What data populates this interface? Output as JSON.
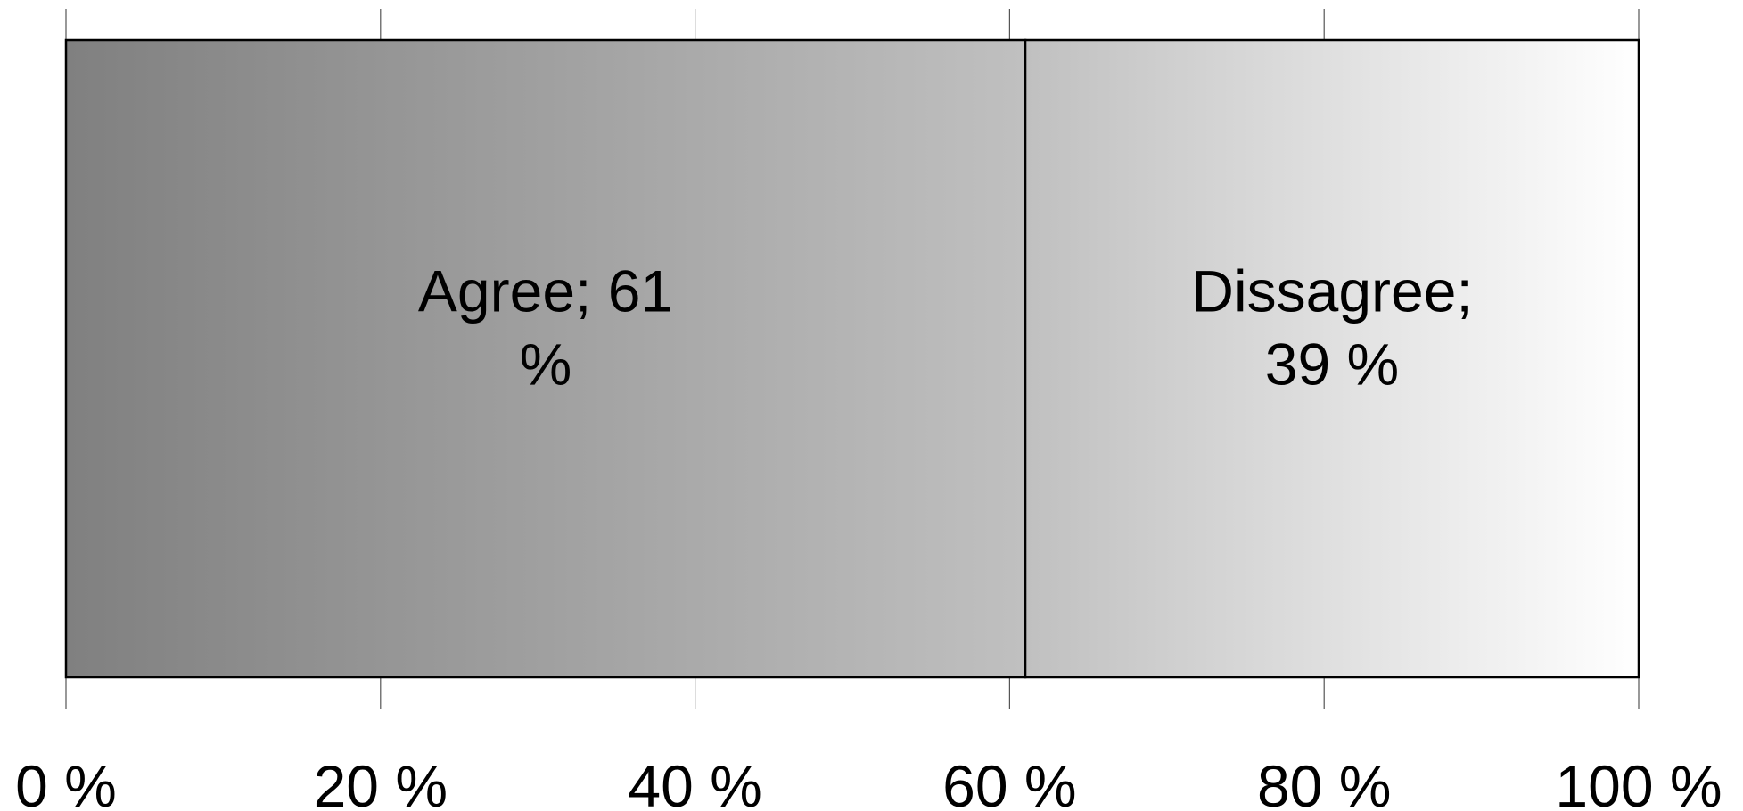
{
  "chart_data": {
    "type": "bar",
    "orientation": "horizontal",
    "stacked": true,
    "percent_stacked": true,
    "categories": [
      ""
    ],
    "series": [
      {
        "name": "Agree",
        "values": [
          61
        ],
        "label_lines": [
          "Agree; 61",
          "%"
        ],
        "gradient": [
          "#808080",
          "#c0c0c0"
        ]
      },
      {
        "name": "Dissagree",
        "values": [
          39
        ],
        "label_lines": [
          "Dissagree;",
          "39 %"
        ],
        "gradient": [
          "#c0c0c0",
          "#ffffff"
        ]
      }
    ],
    "xlim": [
      0,
      100
    ],
    "x_ticks": [
      0,
      20,
      40,
      60,
      80,
      100
    ],
    "x_tick_labels": [
      "0 %",
      "20 %",
      "40 %",
      "60 %",
      "80 %",
      "100 %"
    ],
    "grid": true,
    "title": "",
    "xlabel": "",
    "ylabel": "",
    "legend": "none"
  }
}
